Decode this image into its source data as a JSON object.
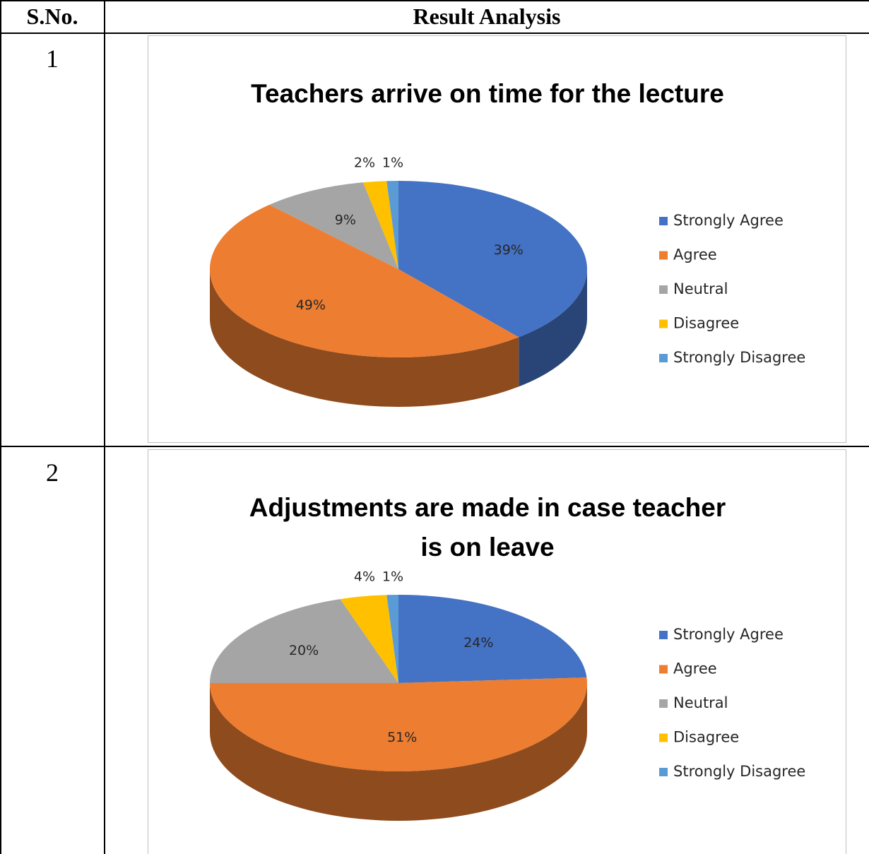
{
  "table": {
    "header": [
      "S.No.",
      "Result Analysis"
    ],
    "rows": [
      {
        "number": "1",
        "chart_data": {
          "type": "pie",
          "title": "Teachers arrive on time for the lecture",
          "categories": [
            "Strongly Agree",
            "Agree",
            "Neutral",
            "Disagree",
            "Strongly Disagree"
          ],
          "values": [
            39,
            49,
            9,
            2,
            1
          ],
          "value_labels": [
            "39%",
            "49%",
            "9%",
            "2%",
            "1%"
          ],
          "colors": [
            "#4472c4",
            "#ed7d31",
            "#a5a5a5",
            "#ffc000",
            "#5b9bd5"
          ],
          "legend": "right"
        }
      },
      {
        "number": "2",
        "chart_data": {
          "type": "pie",
          "title": "Adjustments are made in case teacher is on leave",
          "categories": [
            "Strongly Agree",
            "Agree",
            "Neutral",
            "Disagree",
            "Strongly Disagree"
          ],
          "values": [
            24,
            51,
            20,
            4,
            1
          ],
          "value_labels": [
            "24%",
            "51%",
            "20%",
            "4%",
            "1%"
          ],
          "colors": [
            "#4472c4",
            "#ed7d31",
            "#a5a5a5",
            "#ffc000",
            "#5b9bd5"
          ],
          "legend": "right"
        }
      }
    ]
  }
}
